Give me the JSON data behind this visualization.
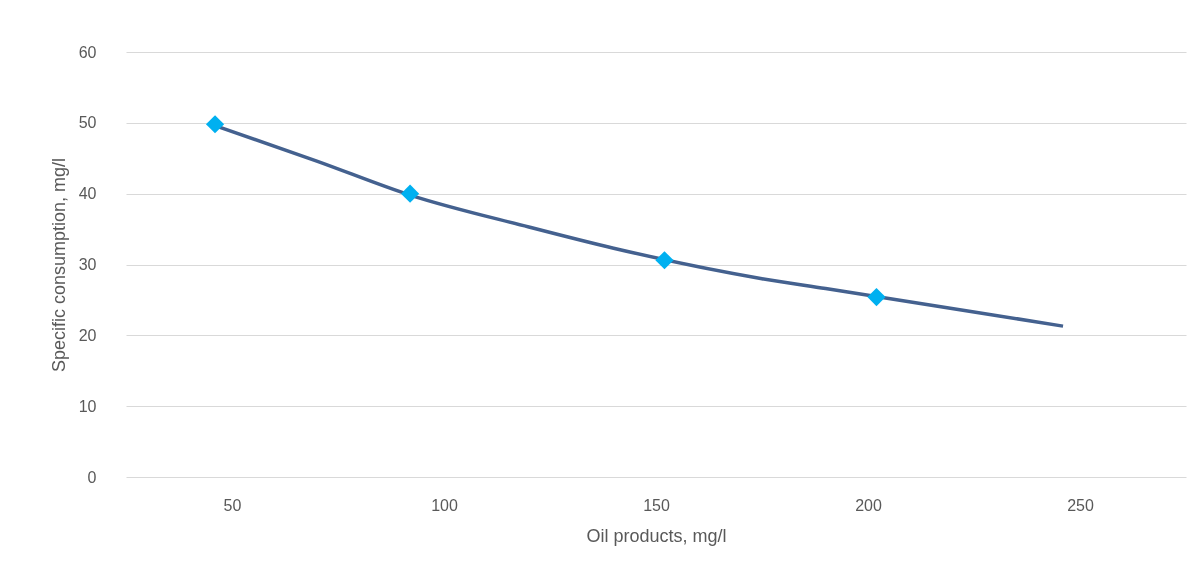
{
  "chart_data": {
    "type": "scatter",
    "xlabel": "Oil products, mg/l",
    "ylabel": "Specific consumption, mg/l",
    "xlim": [
      25,
      275
    ],
    "xticks": [
      50,
      100,
      150,
      200,
      250
    ],
    "ylim": [
      0,
      60
    ],
    "yticks": [
      0,
      10,
      20,
      30,
      40,
      50,
      60
    ],
    "grid": "y",
    "series": [
      {
        "type": "line",
        "color": "#44618f",
        "marker": "none",
        "x": [
          46,
          70,
          92,
          120,
          140,
          175,
          190,
          225,
          246
        ],
        "values": [
          49.6,
          44.6,
          39.8,
          35.3,
          32.3,
          28,
          26.6,
          23.3,
          21.3
        ]
      },
      {
        "type": "scatter",
        "color": "#00b0f0",
        "marker": "diamond",
        "x": [
          46,
          92,
          152,
          202
        ],
        "values": [
          49.8,
          40,
          30.6,
          25.4
        ]
      }
    ]
  }
}
